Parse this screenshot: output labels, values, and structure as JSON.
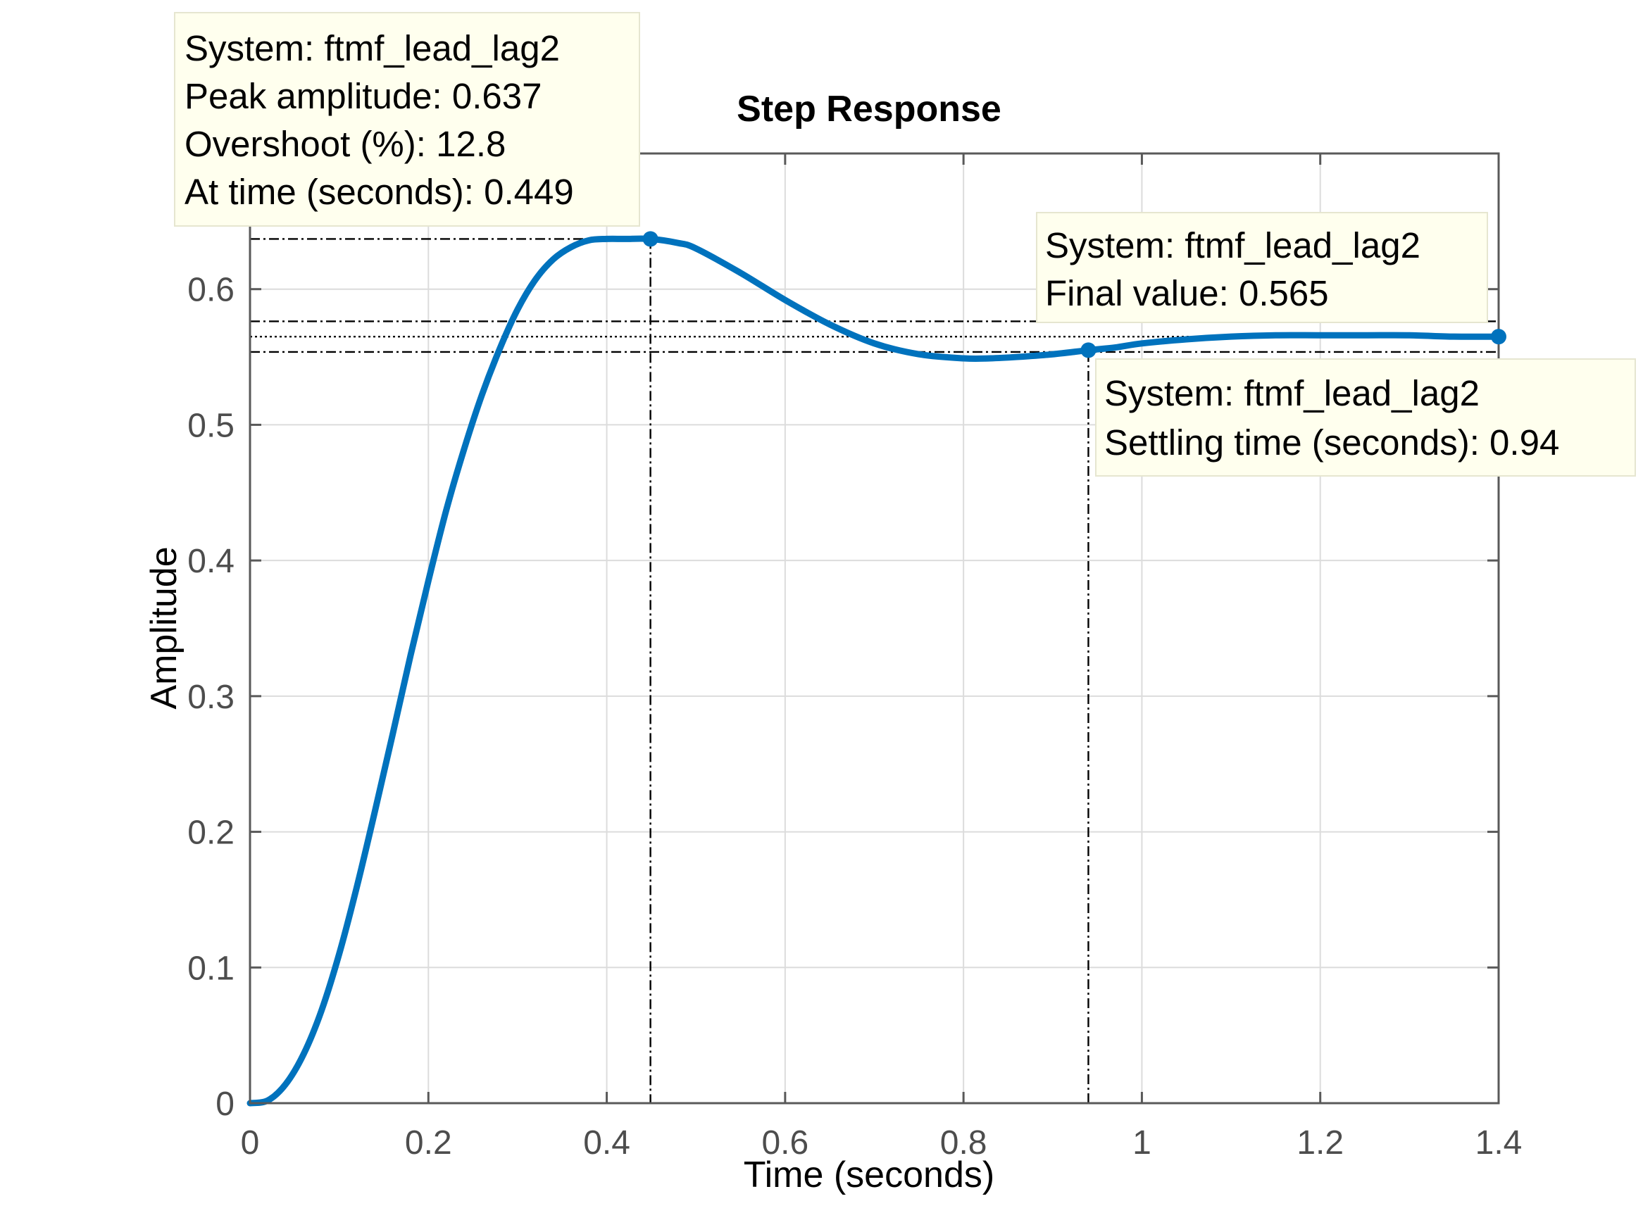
{
  "chart_data": {
    "type": "line",
    "title": "Step Response",
    "xlabel": "Time (seconds)",
    "ylabel": "Amplitude",
    "xlim": [
      0,
      1.4
    ],
    "ylim": [
      0,
      0.7
    ],
    "grid": true,
    "xticks": [
      0,
      0.2,
      0.4,
      0.6,
      0.8,
      1.0,
      1.2,
      1.4
    ],
    "xtick_labels": [
      "0",
      "0.2",
      "0.4",
      "0.6",
      "0.8",
      "1",
      "1.2",
      "1.4"
    ],
    "yticks": [
      0,
      0.1,
      0.2,
      0.3,
      0.4,
      0.5,
      0.6
    ],
    "ytick_labels": [
      "0",
      "0.1",
      "0.2",
      "0.3",
      "0.4",
      "0.5",
      "0.6"
    ],
    "series": [
      {
        "color": "#0072bd",
        "x": [
          0,
          0.02,
          0.04,
          0.06,
          0.08,
          0.1,
          0.12,
          0.14,
          0.16,
          0.18,
          0.2,
          0.22,
          0.24,
          0.26,
          0.28,
          0.3,
          0.32,
          0.34,
          0.36,
          0.38,
          0.4,
          0.42,
          0.449,
          0.48,
          0.5,
          0.55,
          0.6,
          0.65,
          0.7,
          0.75,
          0.8,
          0.83,
          0.86,
          0.9,
          0.94,
          0.97,
          1.0,
          1.05,
          1.1,
          1.15,
          1.2,
          1.25,
          1.3,
          1.35,
          1.4
        ],
        "y": [
          0,
          0.002,
          0.014,
          0.036,
          0.068,
          0.11,
          0.16,
          0.215,
          0.272,
          0.33,
          0.385,
          0.437,
          0.482,
          0.522,
          0.556,
          0.585,
          0.607,
          0.622,
          0.631,
          0.636,
          0.637,
          0.637,
          0.637,
          0.634,
          0.63,
          0.612,
          0.592,
          0.574,
          0.56,
          0.552,
          0.549,
          0.549,
          0.55,
          0.552,
          0.555,
          0.557,
          0.56,
          0.563,
          0.565,
          0.566,
          0.566,
          0.566,
          0.566,
          0.565,
          0.565
        ]
      }
    ],
    "markers": [
      {
        "name": "peak",
        "x": 0.449,
        "y": 0.637
      },
      {
        "name": "settling",
        "x": 0.94,
        "y": 0.555
      },
      {
        "name": "final",
        "x": 1.4,
        "y": 0.565
      }
    ],
    "reference_lines": {
      "final_value": 0.565,
      "settling_band": [
        0.5537,
        0.5763
      ],
      "peak_y": 0.637,
      "peak_x": 0.449,
      "settling_x": 0.94
    }
  },
  "tooltips": {
    "peak": [
      "System: ftmf_lead_lag2",
      "Peak amplitude: 0.637",
      "Overshoot (%): 12.8",
      "At time (seconds): 0.449"
    ],
    "final": [
      "System: ftmf_lead_lag2",
      "Final value: 0.565"
    ],
    "settling": [
      "System: ftmf_lead_lag2",
      "Settling time (seconds): 0.94"
    ]
  }
}
